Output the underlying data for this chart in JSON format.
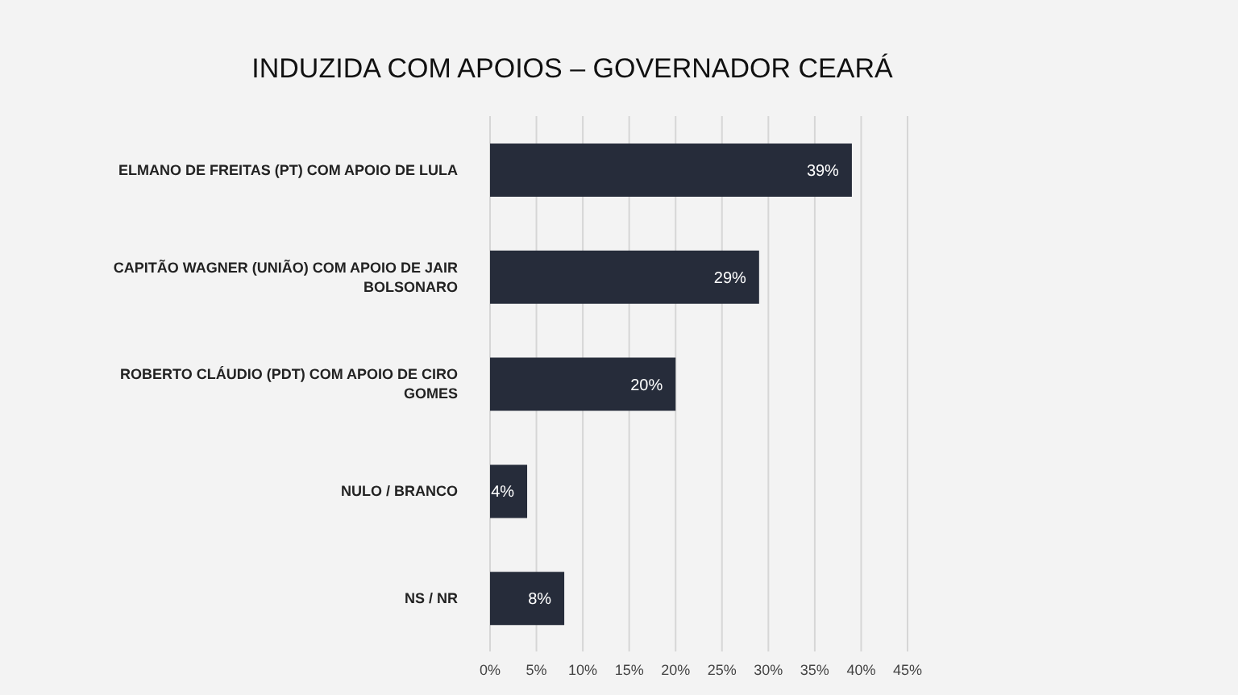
{
  "chart_data": {
    "type": "bar",
    "orientation": "horizontal",
    "title": "INDUZIDA COM APOIOS – GOVERNADOR CEARÁ",
    "categories": [
      "ELMANO DE FREITAS (PT) COM APOIO DE LULA",
      "CAPITÃO WAGNER (UNIÃO) COM APOIO DE JAIR BOLSONARO",
      "ROBERTO CLÁUDIO (PDT) COM APOIO DE CIRO GOMES",
      "NULO / BRANCO",
      "NS / NR"
    ],
    "values": [
      39,
      29,
      20,
      4,
      8
    ],
    "value_labels": [
      "39%",
      "29%",
      "20%",
      "4%",
      "8%"
    ],
    "color": "#262c3a",
    "xlim": [
      0,
      45
    ],
    "xticks": [
      {
        "value": 0,
        "label": "0%"
      },
      {
        "value": 5,
        "label": "5%"
      },
      {
        "value": 10,
        "label": "10%"
      },
      {
        "value": 15,
        "label": "15%"
      },
      {
        "value": 20,
        "label": "20%"
      },
      {
        "value": 25,
        "label": "25%"
      },
      {
        "value": 30,
        "label": "30%"
      },
      {
        "value": 35,
        "label": "35%"
      },
      {
        "value": 40,
        "label": "40%"
      },
      {
        "value": 45,
        "label": "45%"
      }
    ],
    "grid": "x",
    "legend": false
  }
}
